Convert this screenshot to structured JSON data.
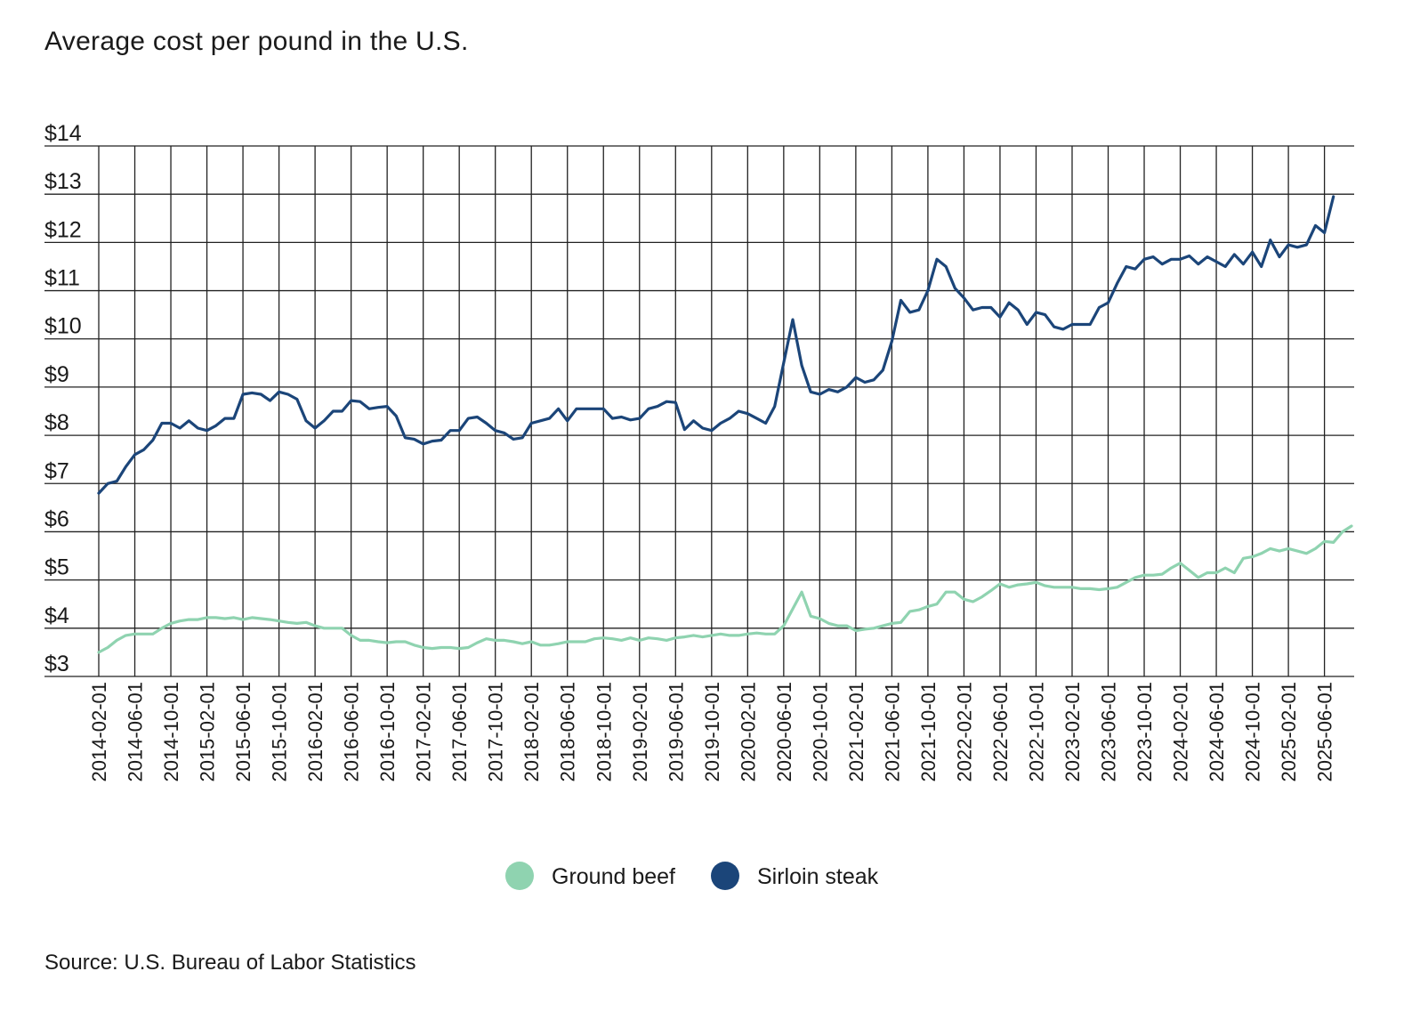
{
  "chart_data": {
    "type": "line",
    "title": "Average cost per pound in the U.S.",
    "source": "Source: U.S. Bureau of Labor Statistics",
    "xlabel": "",
    "ylabel": "",
    "ylim": [
      3,
      14
    ],
    "yticks": [
      "$3",
      "$4",
      "$5",
      "$6",
      "$7",
      "$8",
      "$9",
      "$10",
      "$11",
      "$12",
      "$13",
      "$14"
    ],
    "x_start": "2014-02-01",
    "x_end": "2025-06-01",
    "xticks": [
      "2014-02-01",
      "2014-06-01",
      "2014-10-01",
      "2015-02-01",
      "2015-06-01",
      "2015-10-01",
      "2016-02-01",
      "2016-06-01",
      "2016-10-01",
      "2017-02-01",
      "2017-06-01",
      "2017-10-01",
      "2018-02-01",
      "2018-06-01",
      "2018-10-01",
      "2019-02-01",
      "2019-06-01",
      "2019-10-01",
      "2020-02-01",
      "2020-06-01",
      "2020-10-01",
      "2021-02-01",
      "2021-06-01",
      "2021-10-01",
      "2022-02-01",
      "2022-06-01",
      "2022-10-01",
      "2023-02-01",
      "2023-06-01",
      "2023-10-01",
      "2024-02-01",
      "2024-06-01",
      "2024-10-01",
      "2025-02-01",
      "2025-06-01"
    ],
    "grid": true,
    "legend_position": "bottom-center",
    "series": [
      {
        "name": "Ground beef",
        "color": "#8fd3b0",
        "values": [
          3.5,
          3.6,
          3.75,
          3.85,
          3.88,
          3.88,
          3.88,
          4.0,
          4.1,
          4.15,
          4.18,
          4.18,
          4.22,
          4.22,
          4.2,
          4.22,
          4.18,
          4.22,
          4.2,
          4.18,
          4.15,
          4.12,
          4.1,
          4.12,
          4.05,
          4.0,
          4.0,
          4.0,
          3.85,
          3.75,
          3.75,
          3.72,
          3.7,
          3.72,
          3.72,
          3.65,
          3.6,
          3.58,
          3.6,
          3.6,
          3.58,
          3.6,
          3.7,
          3.78,
          3.75,
          3.75,
          3.72,
          3.68,
          3.72,
          3.65,
          3.65,
          3.68,
          3.72,
          3.72,
          3.72,
          3.78,
          3.8,
          3.78,
          3.75,
          3.8,
          3.75,
          3.8,
          3.78,
          3.75,
          3.8,
          3.82,
          3.85,
          3.82,
          3.85,
          3.88,
          3.85,
          3.85,
          3.88,
          3.9,
          3.88,
          3.88,
          4.05,
          4.4,
          4.75,
          4.25,
          4.2,
          4.1,
          4.05,
          4.05,
          3.95,
          3.98,
          4.0,
          4.05,
          4.1,
          4.12,
          4.35,
          4.38,
          4.45,
          4.5,
          4.75,
          4.75,
          4.6,
          4.55,
          4.65,
          4.78,
          4.92,
          4.85,
          4.9,
          4.92,
          4.95,
          4.88,
          4.85,
          4.85,
          4.85,
          4.82,
          4.82,
          4.8,
          4.82,
          4.85,
          4.95,
          5.05,
          5.1,
          5.1,
          5.12,
          5.25,
          5.35,
          5.2,
          5.05,
          5.15,
          5.15,
          5.25,
          5.15,
          5.45,
          5.48,
          5.55,
          5.65,
          5.6,
          5.65,
          5.6,
          5.55,
          5.65,
          5.8,
          5.78,
          6.0,
          6.12
        ]
      },
      {
        "name": "Sirloin steak",
        "color": "#1b4579",
        "values": [
          6.8,
          7.0,
          7.05,
          7.35,
          7.6,
          7.7,
          7.9,
          8.25,
          8.25,
          8.15,
          8.3,
          8.15,
          8.1,
          8.2,
          8.35,
          8.35,
          8.85,
          8.88,
          8.85,
          8.72,
          8.9,
          8.85,
          8.75,
          8.3,
          8.15,
          8.3,
          8.5,
          8.5,
          8.72,
          8.7,
          8.55,
          8.58,
          8.6,
          8.4,
          7.95,
          7.92,
          7.82,
          7.88,
          7.9,
          8.1,
          8.1,
          8.35,
          8.38,
          8.25,
          8.1,
          8.05,
          7.92,
          7.95,
          8.25,
          8.3,
          8.35,
          8.55,
          8.3,
          8.55,
          8.55,
          8.55,
          8.55,
          8.35,
          8.38,
          8.32,
          8.35,
          8.55,
          8.6,
          8.7,
          8.68,
          8.12,
          8.3,
          8.15,
          8.1,
          8.25,
          8.35,
          8.5,
          8.45,
          8.35,
          8.25,
          8.6,
          9.5,
          10.4,
          9.45,
          8.9,
          8.85,
          8.95,
          8.9,
          9.0,
          9.2,
          9.1,
          9.15,
          9.35,
          9.95,
          10.8,
          10.55,
          10.6,
          11.0,
          11.65,
          11.5,
          11.05,
          10.85,
          10.6,
          10.65,
          10.65,
          10.45,
          10.75,
          10.6,
          10.3,
          10.55,
          10.5,
          10.25,
          10.2,
          10.3,
          10.3,
          10.3,
          10.65,
          10.75,
          11.15,
          11.5,
          11.45,
          11.65,
          11.7,
          11.55,
          11.65,
          11.65,
          11.72,
          11.55,
          11.7,
          11.6,
          11.5,
          11.75,
          11.55,
          11.8,
          11.5,
          12.05,
          11.7,
          11.95,
          11.9,
          11.95,
          12.35,
          12.2,
          12.95
        ]
      }
    ]
  }
}
